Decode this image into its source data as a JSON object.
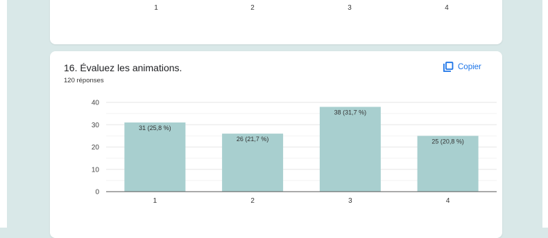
{
  "previous_chart": {
    "tick_labels": [
      "1",
      "2",
      "3",
      "4"
    ]
  },
  "question": {
    "title": "16. Évaluez les animations.",
    "responses": "120 réponses",
    "copy_label": "Copier"
  },
  "colors": {
    "bar": "#a8cfcf",
    "accent": "#1a73e8",
    "background": "#d9e8e8"
  },
  "chart_data": {
    "type": "bar",
    "categories": [
      "1",
      "2",
      "3",
      "4"
    ],
    "values": [
      31,
      26,
      38,
      25
    ],
    "data_labels": [
      "31 (25,8 %)",
      "26 (21,7 %)",
      "38 (31,7 %)",
      "25 (20,8 %)"
    ],
    "yticks": [
      0,
      10,
      20,
      30,
      40
    ],
    "ylim": [
      0,
      40
    ],
    "grid": true,
    "title": "",
    "xlabel": "",
    "ylabel": ""
  }
}
